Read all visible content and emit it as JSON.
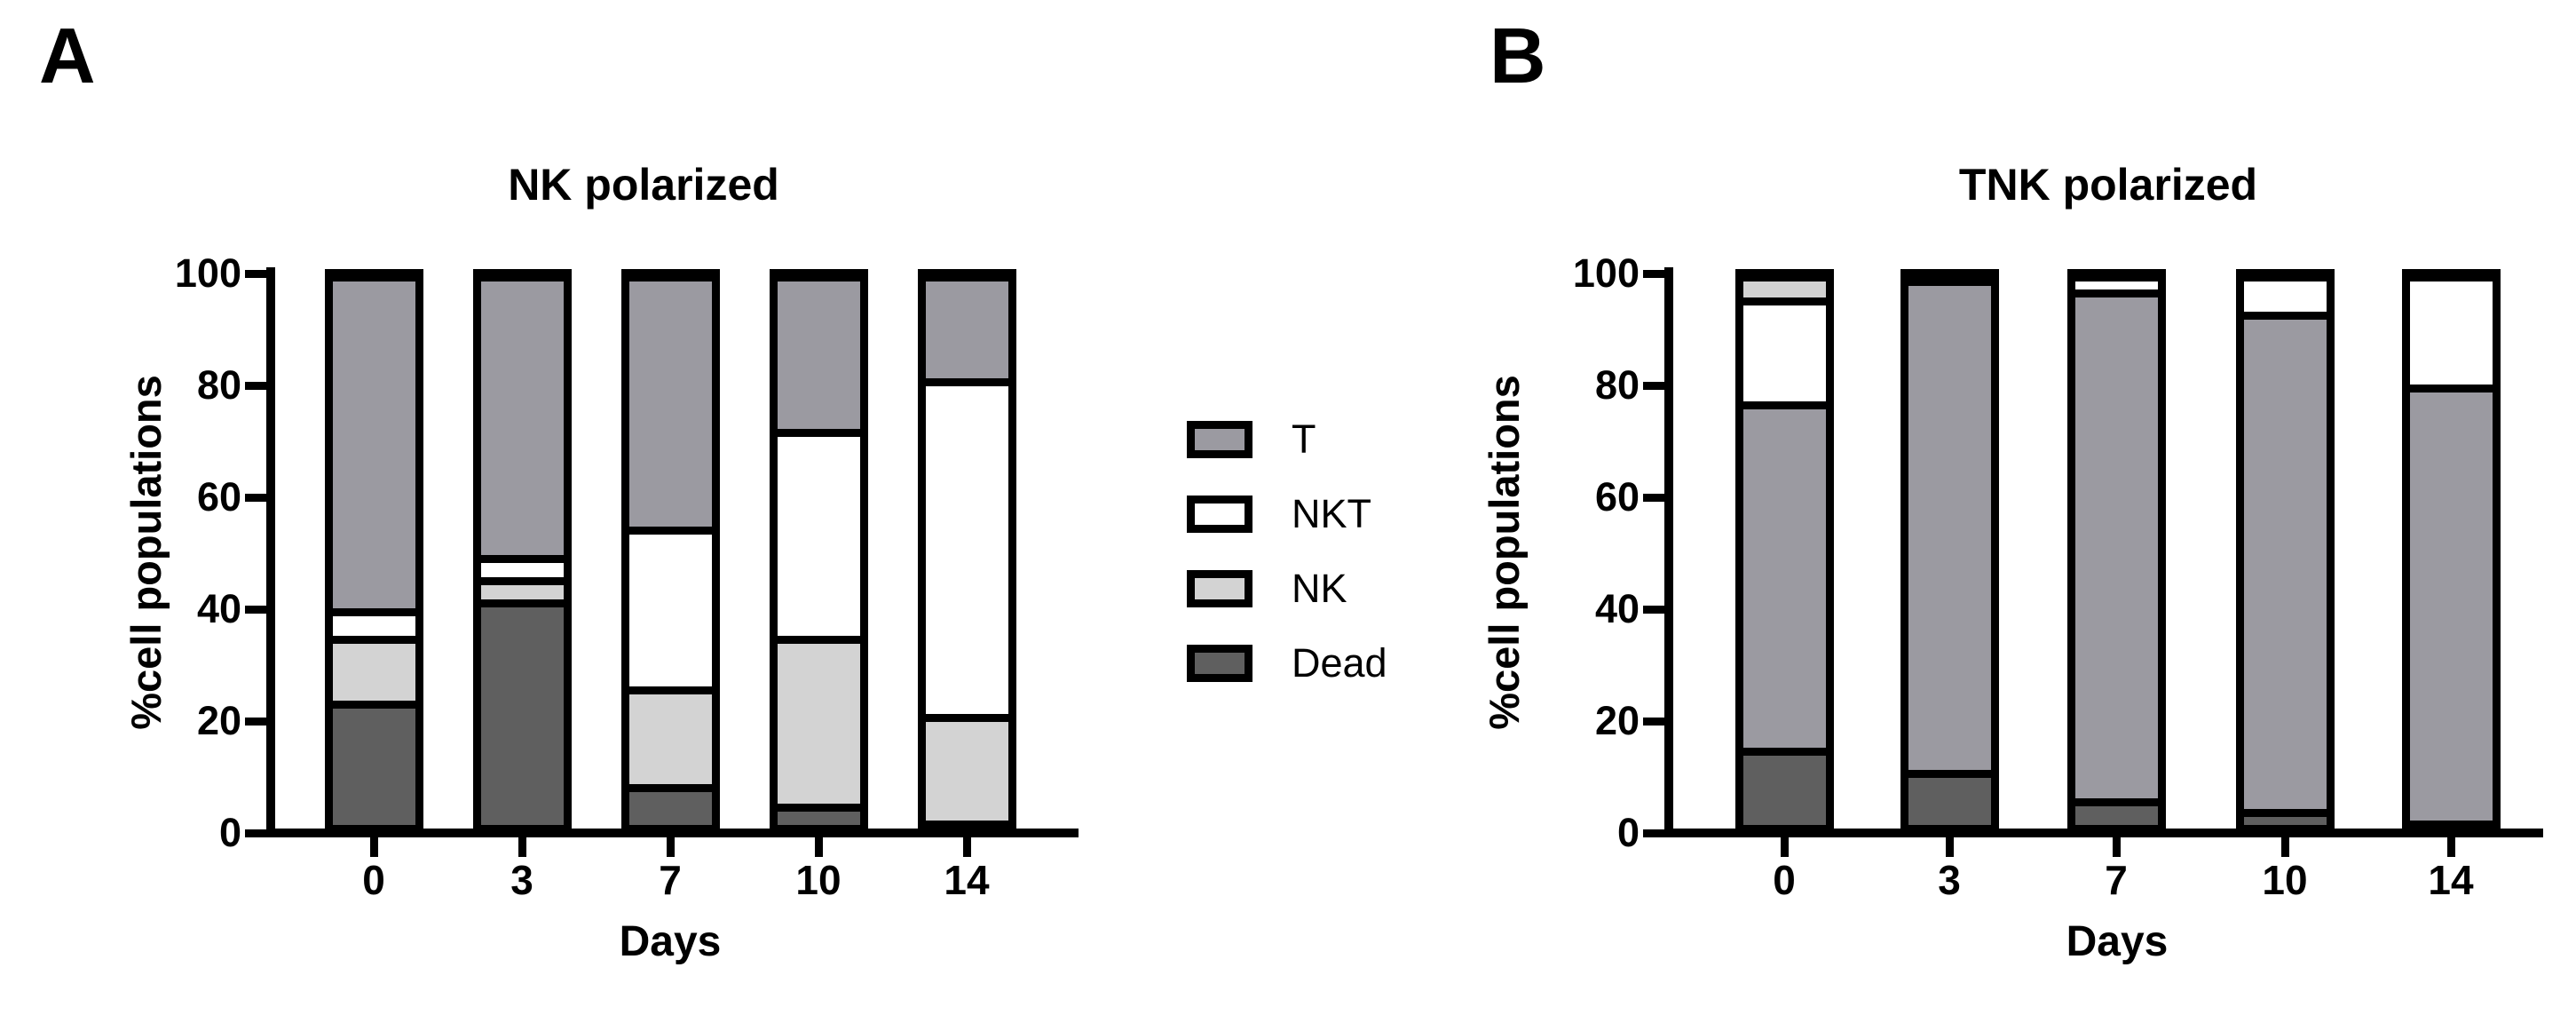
{
  "figure": {
    "panels": [
      {
        "letter": "A"
      },
      {
        "letter": "B"
      }
    ]
  },
  "legend": {
    "items": [
      {
        "label": "T",
        "color": "#9b9aa1"
      },
      {
        "label": "NKT",
        "color": "#ffffff"
      },
      {
        "label": "NK",
        "color": "#d3d3d3"
      },
      {
        "label": "Dead",
        "color": "#5f5f5f"
      }
    ]
  },
  "colors": {
    "axis": "#000000",
    "background": "#ffffff",
    "T": "#9b9aa1",
    "NKT": "#ffffff",
    "NK": "#d3d3d3",
    "Dead": "#5f5f5f"
  },
  "chart_data": [
    {
      "type": "bar",
      "stacked": true,
      "panel_label": "A",
      "title": "NK polarized",
      "xlabel": "Days",
      "ylabel": "%cell populations",
      "categories": [
        "0",
        "3",
        "7",
        "10",
        "14"
      ],
      "ylim": [
        0,
        100
      ],
      "yticks": [
        0,
        20,
        40,
        60,
        80,
        100
      ],
      "grid": false,
      "legend_position": "right-of-panel",
      "stack_order_bottom_to_top": [
        "Dead",
        "NK",
        "NKT",
        "T"
      ],
      "series": [
        {
          "name": "Dead",
          "values": [
            23,
            41,
            8,
            4.5,
            1.5
          ]
        },
        {
          "name": "NK",
          "values": [
            11.5,
            4,
            17.5,
            30,
            19
          ]
        },
        {
          "name": "NKT",
          "values": [
            5,
            4,
            28.5,
            37,
            60
          ]
        },
        {
          "name": "T",
          "values": [
            60.5,
            51,
            46,
            28.5,
            19.5
          ]
        }
      ]
    },
    {
      "type": "bar",
      "stacked": true,
      "panel_label": "B",
      "title": "TNK polarized",
      "xlabel": "Days",
      "ylabel": "%cell populations",
      "categories": [
        "0",
        "3",
        "7",
        "10",
        "14"
      ],
      "ylim": [
        0,
        100
      ],
      "yticks": [
        0,
        20,
        40,
        60,
        80,
        100
      ],
      "grid": false,
      "stack_order_bottom_to_top": [
        "Dead",
        "T",
        "NKT",
        "NK"
      ],
      "series": [
        {
          "name": "Dead",
          "values": [
            14.5,
            10.5,
            5.5,
            3.5,
            1.5
          ]
        },
        {
          "name": "T",
          "values": [
            62,
            88,
            91,
            89,
            78
          ]
        },
        {
          "name": "NKT",
          "values": [
            18.5,
            1.5,
            3.5,
            7.5,
            20.5
          ]
        },
        {
          "name": "NK",
          "values": [
            5,
            0,
            0,
            0,
            0
          ]
        }
      ]
    }
  ]
}
